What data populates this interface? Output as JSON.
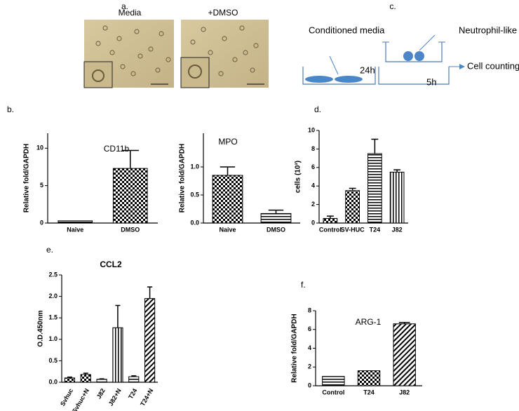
{
  "panels": {
    "a": {
      "label": "a.",
      "images": [
        "Media",
        "+DMSO"
      ]
    },
    "c": {
      "label": "c.",
      "conditioned": "Conditioned media",
      "neutrophil": "Neutrophil-like",
      "time1": "24h",
      "time2": "5h",
      "counting": "Cell counting"
    },
    "b": {
      "label": "b."
    },
    "d": {
      "label": "d."
    },
    "e": {
      "label": "e."
    },
    "f": {
      "label": "f."
    }
  },
  "chart_data": [
    {
      "type": "bar",
      "title": "CD11b",
      "ylabel": "Relative fold/GAPDH",
      "categories": [
        "Naive",
        "DMSO"
      ],
      "values": [
        0.3,
        7.3
      ],
      "errors": [
        null,
        2.4
      ],
      "patterns": [
        "hlines",
        "checker"
      ],
      "color": "#000000",
      "ylim": [
        0,
        12
      ],
      "yticks": [
        0,
        5,
        10
      ]
    },
    {
      "type": "bar",
      "title": "MPO",
      "ylabel": "Relative fold/GAPDH",
      "categories": [
        "Naive",
        "DMSO"
      ],
      "values": [
        0.85,
        0.17
      ],
      "errors": [
        0.15,
        0.06
      ],
      "patterns": [
        "checker",
        "hlines"
      ],
      "color": "#000000",
      "ylim": [
        0,
        1.6
      ],
      "yticks": [
        {
          "value": 0,
          "label": "0.0"
        },
        0.5,
        {
          "value": 1,
          "label": "1.0"
        }
      ]
    },
    {
      "type": "bar",
      "ylabel": "cells (10³)",
      "categories": [
        "Control",
        "SV-HUC",
        "T24",
        "J82"
      ],
      "values": [
        0.5,
        3.5,
        7.5,
        5.5
      ],
      "errors": [
        0.25,
        0.25,
        1.55,
        0.25
      ],
      "patterns": [
        "checker",
        "checker",
        "hlines",
        "vlines"
      ],
      "color": "#000000",
      "ylim": [
        0,
        10
      ],
      "yticks": [
        0,
        2,
        4,
        6,
        8,
        10
      ]
    },
    {
      "type": "bar",
      "title": "CCL2",
      "ylabel": "O.D.450nm",
      "categories": [
        "Svhuc",
        "Svhuc+N",
        "J82",
        "J82+N",
        "T24",
        "T24+N"
      ],
      "values": [
        0.1,
        0.18,
        0.07,
        1.27,
        0.13,
        1.95
      ],
      "errors": [
        0.02,
        0.03,
        0.01,
        0.52,
        0.02,
        0.27
      ],
      "patterns": [
        "checker",
        "checker",
        "hlines",
        "vlines",
        "hlines",
        "diag"
      ],
      "color": "#000000",
      "ylim": [
        0,
        2.5
      ],
      "yticks": [
        {
          "value": 0,
          "label": "0.0"
        },
        0.5,
        {
          "value": 1,
          "label": "1.0"
        },
        1.5,
        {
          "value": 2,
          "label": "2.0"
        },
        2.5
      ]
    },
    {
      "type": "bar",
      "title": "ARG-1",
      "ylabel": "Relative fold/GAPDH",
      "categories": [
        "Control",
        "T24",
        "J82"
      ],
      "values": [
        1.0,
        1.6,
        6.6
      ],
      "errors": [
        null,
        null,
        0.15
      ],
      "patterns": [
        "hlines",
        "checker",
        "diag"
      ],
      "color": "#000000",
      "ylim": [
        0,
        8
      ],
      "yticks": [
        0,
        2,
        4,
        6,
        8
      ]
    }
  ]
}
